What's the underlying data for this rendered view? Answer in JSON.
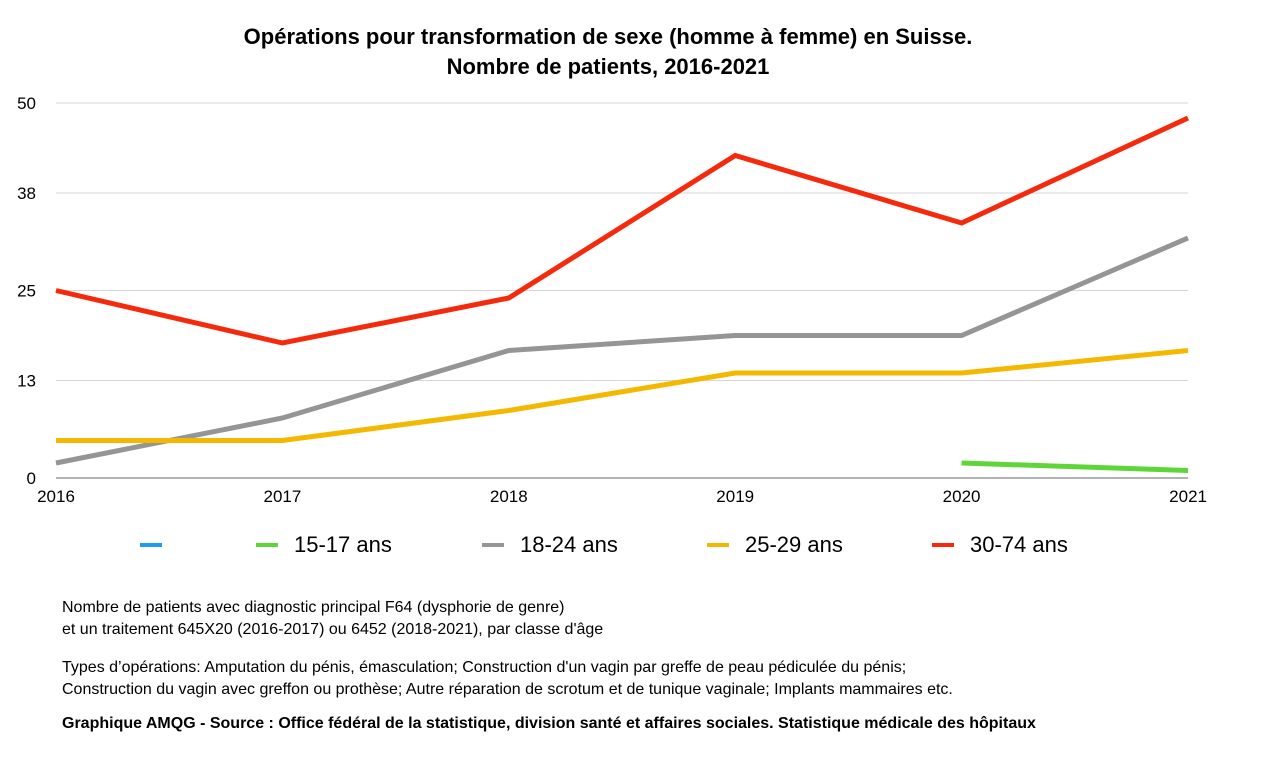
{
  "title_line1": "Opérations pour transformation de sexe (homme à femme) en Suisse.",
  "title_line2": "Nombre de patients, 2016-2021",
  "chart_data": {
    "type": "line",
    "x": [
      "2016",
      "2017",
      "2018",
      "2019",
      "2020",
      "2021"
    ],
    "y_ticks": [
      "0",
      "13",
      "25",
      "38",
      "50"
    ],
    "ylim": [
      0,
      50
    ],
    "grid": true,
    "legend_position": "bottom",
    "series": [
      {
        "name": "",
        "color": "#1f9bf0",
        "values": [
          null,
          null,
          null,
          null,
          null,
          null
        ]
      },
      {
        "name": "15-17 ans",
        "color": "#5ed63a",
        "values": [
          null,
          null,
          null,
          null,
          2,
          1
        ]
      },
      {
        "name": "18-24 ans",
        "color": "#959595",
        "values": [
          2,
          8,
          17,
          19,
          19,
          32
        ]
      },
      {
        "name": "25-29 ans",
        "color": "#f5b800",
        "values": [
          5,
          5,
          9,
          14,
          14,
          17
        ]
      },
      {
        "name": "30-74 ans",
        "color": "#f52a0c",
        "values": [
          25,
          18,
          24,
          43,
          34,
          48
        ]
      }
    ]
  },
  "notes": {
    "line1": "Nombre de patients avec diagnostic principal F64 (dysphorie de genre)",
    "line2": "et un traitement 645X20 (2016-2017) ou 6452 (2018-2021), par classe d'âge",
    "line3": "Types d’opérations: Amputation du pénis, émasculation; Construction d'un vagin par greffe de peau pédiculée du pénis;",
    "line4": "Construction du vagin avec greffon ou prothèse; Autre réparation de scrotum et de tunique vaginale; Implants mammaires etc.",
    "source": "Graphique AMQG - Source : Office fédéral de la statistique, division santé et affaires sociales. Statistique médicale des hôpitaux"
  }
}
